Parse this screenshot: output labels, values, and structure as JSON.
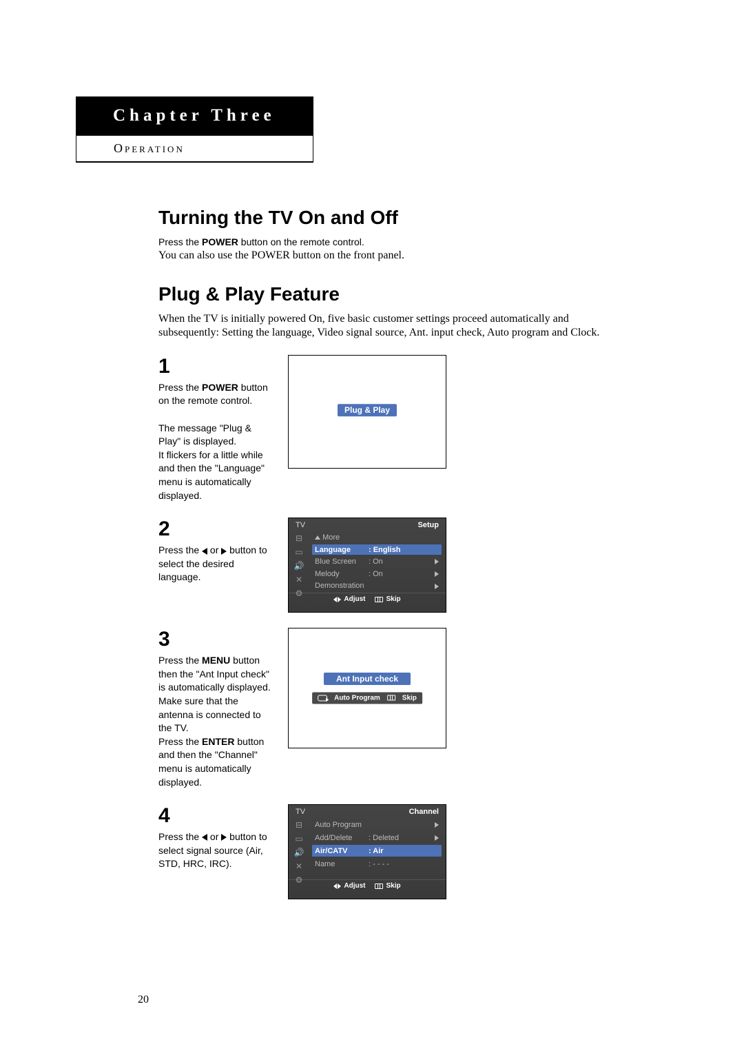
{
  "chapter": {
    "title": "Chapter Three",
    "subtitle": "Operation"
  },
  "section1": {
    "heading": "Turning the TV On and Off",
    "line1_pre": "Press the ",
    "line1_bold": "POWER",
    "line1_post": " button on the remote control.",
    "line2": "You can also use the POWER button on the front panel."
  },
  "section2": {
    "heading": "Plug & Play Feature",
    "para": "When the TV is initially powered On, five basic customer settings proceed automatically and subsequently: Setting the language, Video signal source, Ant. input check, Auto program and Clock."
  },
  "steps": {
    "s1": {
      "num": "1",
      "t1": "Press the ",
      "t1b": "POWER",
      "t1p": " button on the remote control.",
      "t2": "The message \"Plug & Play\" is displayed.",
      "t3": "It flickers for a little while and then the \"Language\" menu is automatically displayed.",
      "pill": "Plug & Play"
    },
    "s2": {
      "num": "2",
      "txt": "Press the ◀ or ▶ button to select the desired language.",
      "menu": {
        "corner": "TV",
        "title": "Setup",
        "more": "More",
        "rows": [
          {
            "label": "Language",
            "value": ": English",
            "hi": true,
            "arrow": false
          },
          {
            "label": "Blue Screen",
            "value": ": On",
            "hi": false,
            "arrow": true
          },
          {
            "label": "Melody",
            "value": ": On",
            "hi": false,
            "arrow": true
          },
          {
            "label": "Demonstration",
            "value": "",
            "hi": false,
            "arrow": true
          }
        ],
        "footer": {
          "adjust": "Adjust",
          "skip": "Skip"
        }
      }
    },
    "s3": {
      "num": "3",
      "t1": "Press the ",
      "t1b": "MENU",
      "t1p": " button then the \"Ant Input check\" is automatically displayed. Make sure that the antenna is connected to the TV.",
      "t2": "Press the ",
      "t2b": "ENTER",
      "t2p": " button and then the \"Channel\" menu is automatically displayed.",
      "pill": "Ant Input check",
      "bar": {
        "auto": "Auto Program",
        "skip": "Skip"
      }
    },
    "s4": {
      "num": "4",
      "txt": "Press the ◀ or ▶ button to select signal source (Air, STD, HRC, IRC).",
      "menu": {
        "corner": "TV",
        "title": "Channel",
        "rows": [
          {
            "label": "Auto Program",
            "value": "",
            "hi": false,
            "arrow": true
          },
          {
            "label": "Add/Delete",
            "value": ": Deleted",
            "hi": false,
            "arrow": true
          },
          {
            "label": "Air/CATV",
            "value": ": Air",
            "hi": true,
            "arrow": false
          },
          {
            "label": "Name",
            "value": ": - - - -",
            "hi": false,
            "arrow": false
          }
        ],
        "footer": {
          "adjust": "Adjust",
          "skip": "Skip"
        }
      }
    }
  },
  "pageNumber": "20",
  "colors": {
    "accent": "#4d72b8",
    "osd_bg": "#3f3f3f",
    "osd_dim": "#aaaaaa"
  }
}
